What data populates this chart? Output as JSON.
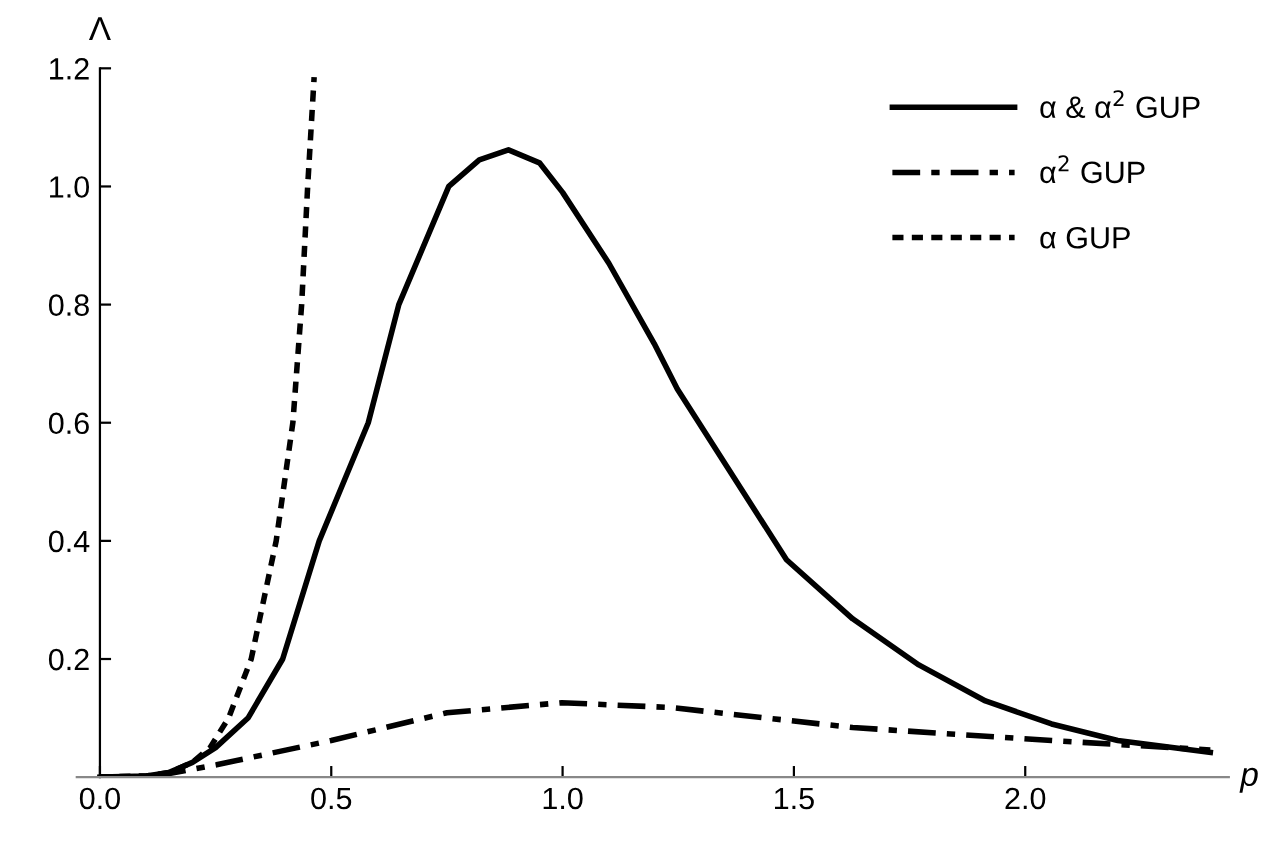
{
  "chart_data": {
    "type": "line",
    "xlabel": "p",
    "ylabel": "Λ",
    "xlim": [
      -0.05,
      2.44
    ],
    "ylim": [
      0,
      1.2
    ],
    "xticks": [
      {
        "value": 0,
        "label": "0.0"
      },
      {
        "value": 0.5,
        "label": "0.5"
      },
      {
        "value": 1,
        "label": "1.0"
      },
      {
        "value": 1.5,
        "label": "1.5"
      },
      {
        "value": 2,
        "label": "2.0"
      }
    ],
    "yticks": [
      {
        "value": 0.2,
        "label": "0.2"
      },
      {
        "value": 0.4,
        "label": "0.4"
      },
      {
        "value": 0.6,
        "label": "0.6"
      },
      {
        "value": 0.8,
        "label": "0.8"
      },
      {
        "value": 1,
        "label": "1.0"
      },
      {
        "value": 1.2,
        "label": "1.2"
      }
    ],
    "grid": false,
    "legend": "top right",
    "marker": "none",
    "series": [
      {
        "name": "α & α$^{2}$ GUP",
        "color": "#000000",
        "line_style": "solid",
        "x": [
          0,
          0.1,
          0.15,
          0.2,
          0.25,
          0.32,
          0.395,
          0.474,
          0.58,
          0.646,
          0.754,
          0.82,
          0.883,
          0.95,
          1.0,
          1.1,
          1.198,
          1.248,
          1.484,
          1.627,
          1.77,
          1.914,
          2.057,
          2.2,
          2.4
        ],
        "values": [
          0,
          0.002,
          0.008,
          0.025,
          0.05,
          0.1,
          0.2,
          0.4,
          0.6,
          0.8,
          1.0,
          1.045,
          1.062,
          1.04,
          0.99,
          0.87,
          0.734,
          0.657,
          0.368,
          0.268,
          0.19,
          0.129,
          0.09,
          0.062,
          0.042
        ]
      },
      {
        "name": "α$^{2}$ GUP",
        "color": "#000000",
        "line_style": "dashdot",
        "x": [
          0,
          0.1,
          0.15,
          0.252,
          0.5,
          0.75,
          0.998,
          1.232,
          1.627,
          2.057,
          2.4
        ],
        "values": [
          0,
          0.001,
          0.006,
          0.021,
          0.062,
          0.109,
          0.126,
          0.118,
          0.084,
          0.062,
          0.046
        ]
      },
      {
        "name": "α GUP",
        "color": "#000000",
        "line_style": "dotted",
        "x": [
          0,
          0.1,
          0.15,
          0.2,
          0.238,
          0.278,
          0.327,
          0.381,
          0.417,
          0.436,
          0.449,
          0.463
        ],
        "values": [
          0,
          0.002,
          0.008,
          0.025,
          0.05,
          0.1,
          0.2,
          0.4,
          0.6,
          0.8,
          1.0,
          1.185
        ]
      }
    ]
  }
}
